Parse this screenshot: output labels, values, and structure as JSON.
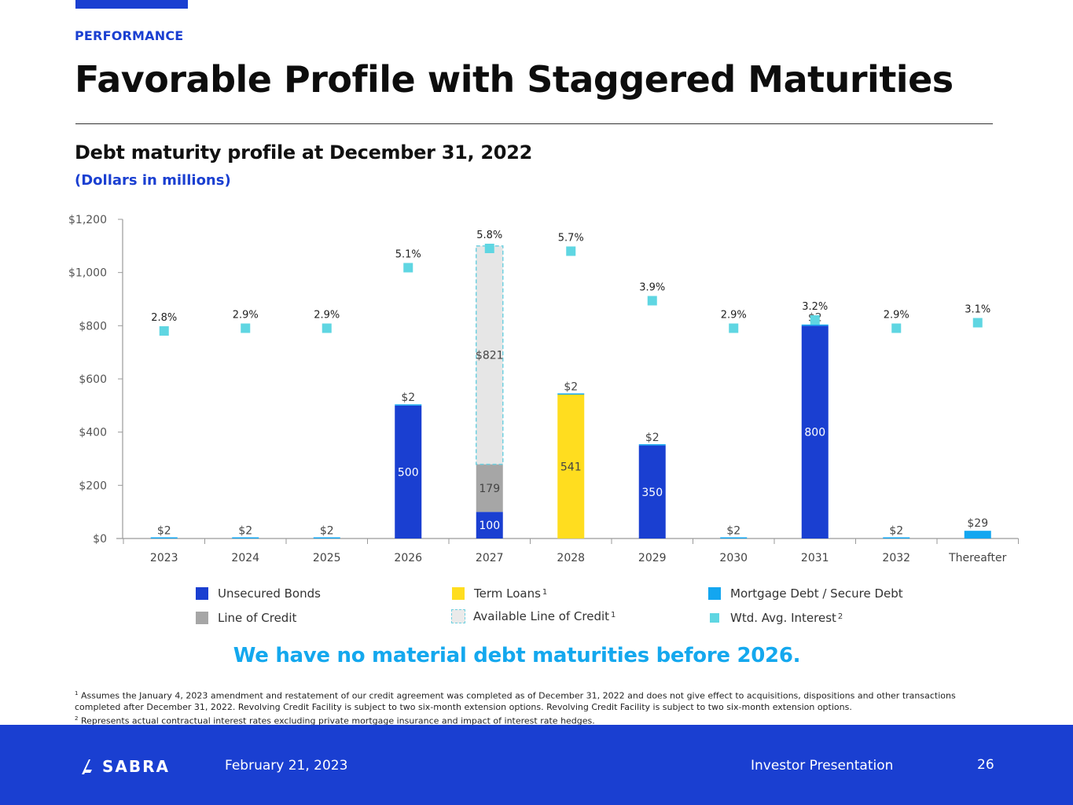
{
  "header": {
    "section_label": "PERFORMANCE",
    "title": "Favorable Profile with Staggered Maturities"
  },
  "chart_heading": {
    "title": "Debt maturity profile at December 31, 2022",
    "subtitle": "(Dollars in millions)"
  },
  "chart_data": {
    "type": "bar",
    "stacked": true,
    "categories": [
      "2023",
      "2024",
      "2025",
      "2026",
      "2027",
      "2028",
      "2029",
      "2030",
      "2031",
      "2032",
      "Thereafter"
    ],
    "y_ticks": [
      "$0",
      "$200",
      "$400",
      "$600",
      "$800",
      "$1,000",
      "$1,200"
    ],
    "ylim": [
      0,
      1200
    ],
    "series": [
      {
        "name": "Unsecured Bonds",
        "color": "#1a3fd1",
        "values": [
          0,
          0,
          0,
          500,
          100,
          0,
          350,
          0,
          800,
          0,
          0
        ]
      },
      {
        "name": "Line of Credit",
        "color": "#a6a6a6",
        "values": [
          0,
          0,
          0,
          0,
          179,
          0,
          0,
          0,
          0,
          0,
          0
        ]
      },
      {
        "name": "Term Loans",
        "color": "#ffdd1f",
        "values": [
          0,
          0,
          0,
          0,
          0,
          541,
          0,
          0,
          0,
          0,
          0
        ]
      },
      {
        "name": "Mortgage Debt / Secure Debt",
        "color": "#13a6f0",
        "values": [
          2,
          2,
          2,
          2,
          0,
          2,
          2,
          2,
          2,
          2,
          29
        ]
      },
      {
        "name": "Available Line of Credit",
        "color": "#e6e6e6",
        "dashed": true,
        "values": [
          0,
          0,
          0,
          0,
          821,
          0,
          0,
          0,
          0,
          0,
          0
        ]
      }
    ],
    "interest": {
      "name": "Wtd. Avg. Interest",
      "color": "#5fd6e2",
      "values": [
        2.8,
        2.9,
        2.9,
        5.1,
        5.8,
        5.7,
        3.9,
        2.9,
        3.2,
        2.9,
        3.1
      ],
      "labels": [
        "2.8%",
        "2.9%",
        "2.9%",
        "5.1%",
        "5.8%",
        "5.7%",
        "3.9%",
        "2.9%",
        "3.2%",
        "2.9%",
        "3.1%"
      ]
    },
    "bar_labels": [
      {
        "category": "2023",
        "series": "Mortgage Debt / Secure Debt",
        "text": "$2"
      },
      {
        "category": "2024",
        "series": "Mortgage Debt / Secure Debt",
        "text": "$2"
      },
      {
        "category": "2025",
        "series": "Mortgage Debt / Secure Debt",
        "text": "$2"
      },
      {
        "category": "2026",
        "series": "Mortgage Debt / Secure Debt",
        "text": "$2"
      },
      {
        "category": "2026",
        "series": "Unsecured Bonds",
        "text": "500"
      },
      {
        "category": "2027",
        "series": "Unsecured Bonds",
        "text": "100"
      },
      {
        "category": "2027",
        "series": "Line of Credit",
        "text": "179"
      },
      {
        "category": "2027",
        "series": "Available Line of Credit",
        "text": "$821"
      },
      {
        "category": "2028",
        "series": "Mortgage Debt / Secure Debt",
        "text": "$2"
      },
      {
        "category": "2028",
        "series": "Term Loans",
        "text": "541"
      },
      {
        "category": "2029",
        "series": "Mortgage Debt / Secure Debt",
        "text": "$2"
      },
      {
        "category": "2029",
        "series": "Unsecured Bonds",
        "text": "350"
      },
      {
        "category": "2030",
        "series": "Mortgage Debt / Secure Debt",
        "text": "$2"
      },
      {
        "category": "2031",
        "series": "Mortgage Debt / Secure Debt",
        "text": "$2"
      },
      {
        "category": "2031",
        "series": "Unsecured Bonds",
        "text": "800"
      },
      {
        "category": "2032",
        "series": "Mortgage Debt / Secure Debt",
        "text": "$2"
      },
      {
        "category": "Thereafter",
        "series": "Mortgage Debt / Secure Debt",
        "text": "$29"
      }
    ]
  },
  "legend": {
    "unsecured_bonds": "Unsecured Bonds",
    "line_of_credit": "Line of Credit",
    "term_loans": "Term Loans",
    "term_loans_note": "1",
    "available_line_of_credit": "Available Line of Credit",
    "available_line_of_credit_note": "1",
    "mortgage_debt": "Mortgage Debt / Secure Debt",
    "wtd_avg_interest": "Wtd. Avg. Interest",
    "wtd_avg_interest_note": "2"
  },
  "takeaway": "We have no material debt maturities before 2026.",
  "footnotes": {
    "note1_marker": "1",
    "note1": "Assumes the January 4, 2023 amendment and restatement of our credit agreement was completed as of December 31, 2022 and does not give effect to acquisitions, dispositions and other transactions completed after December 31, 2022. Revolving Credit Facility is subject to two six-month extension options. Revolving Credit Facility is subject to two six-month extension options.",
    "note2_marker": "2",
    "note2": "Represents actual contractual interest rates excluding private mortgage insurance and impact of interest rate hedges."
  },
  "footer": {
    "logo_text": "SABRA",
    "date": "February 21, 2023",
    "deck_name": "Investor Presentation",
    "page_number": "26"
  }
}
